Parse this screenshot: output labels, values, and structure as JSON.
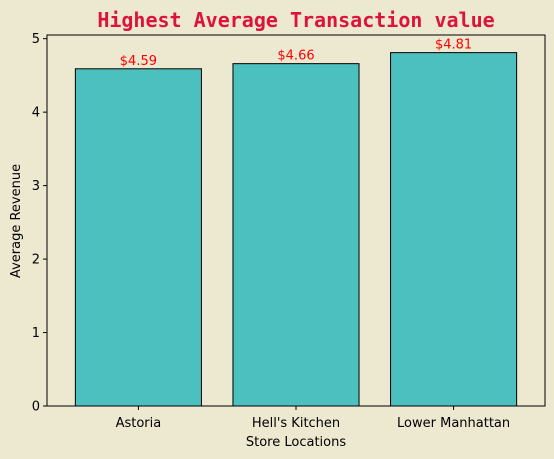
{
  "chart_data": {
    "type": "bar",
    "title": "Highest Average Transaction value",
    "xlabel": "Store Locations",
    "ylabel": "Average Revenue",
    "categories": [
      "Astoria",
      "Hell's Kitchen",
      "Lower Manhattan"
    ],
    "values": [
      4.59,
      4.66,
      4.81
    ],
    "value_labels": [
      "$4.59",
      "$4.66",
      "$4.81"
    ],
    "ylim": [
      0,
      5.05
    ],
    "yticks": [
      0,
      1,
      2,
      3,
      4,
      5
    ],
    "ytick_labels": [
      "0",
      "1",
      "2",
      "3",
      "4",
      "5"
    ],
    "grid": false,
    "legend": "none"
  },
  "colors": {
    "background": "#ede8d0",
    "bar_fill": "#4cbfbf",
    "bar_edge": "#000000",
    "title": "#dc143c",
    "value_labels": "#ff0000"
  }
}
